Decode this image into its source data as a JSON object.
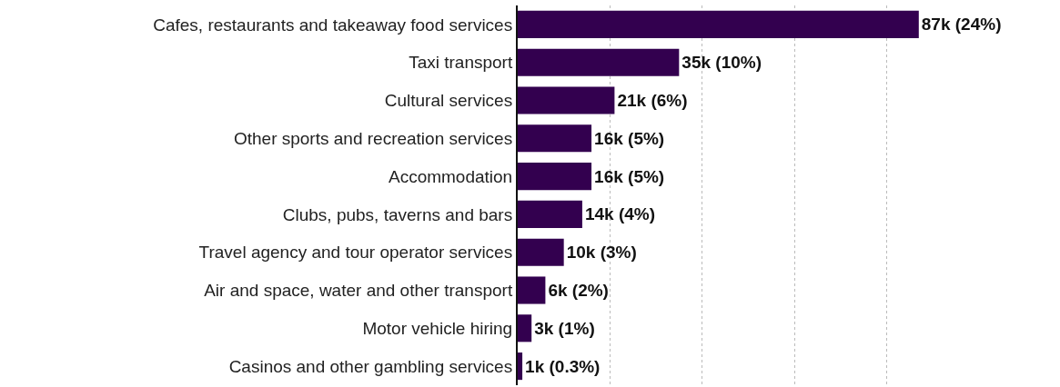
{
  "chart_data": {
    "type": "bar",
    "orientation": "horizontal",
    "categories": [
      "Cafes, restaurants and takeaway food services",
      "Taxi transport",
      "Cultural services",
      "Other sports and recreation services",
      "Accommodation",
      "Clubs, pubs, taverns and bars",
      "Travel agency and tour operator services",
      "Air and space, water and other transport",
      "Motor vehicle hiring",
      "Casinos and other gambling services"
    ],
    "values": [
      87000,
      35000,
      21000,
      16000,
      16000,
      14000,
      10000,
      6000,
      3000,
      1000
    ],
    "value_labels": [
      "87k (24%)",
      "35k (10%)",
      "21k (6%)",
      "16k (5%)",
      "16k (5%)",
      "14k (4%)",
      "10k (3%)",
      "6k (2%)",
      "3k (1%)",
      "1k (0.3%)"
    ],
    "color": "#33004f",
    "grid": "x",
    "tick_labels": "y"
  }
}
